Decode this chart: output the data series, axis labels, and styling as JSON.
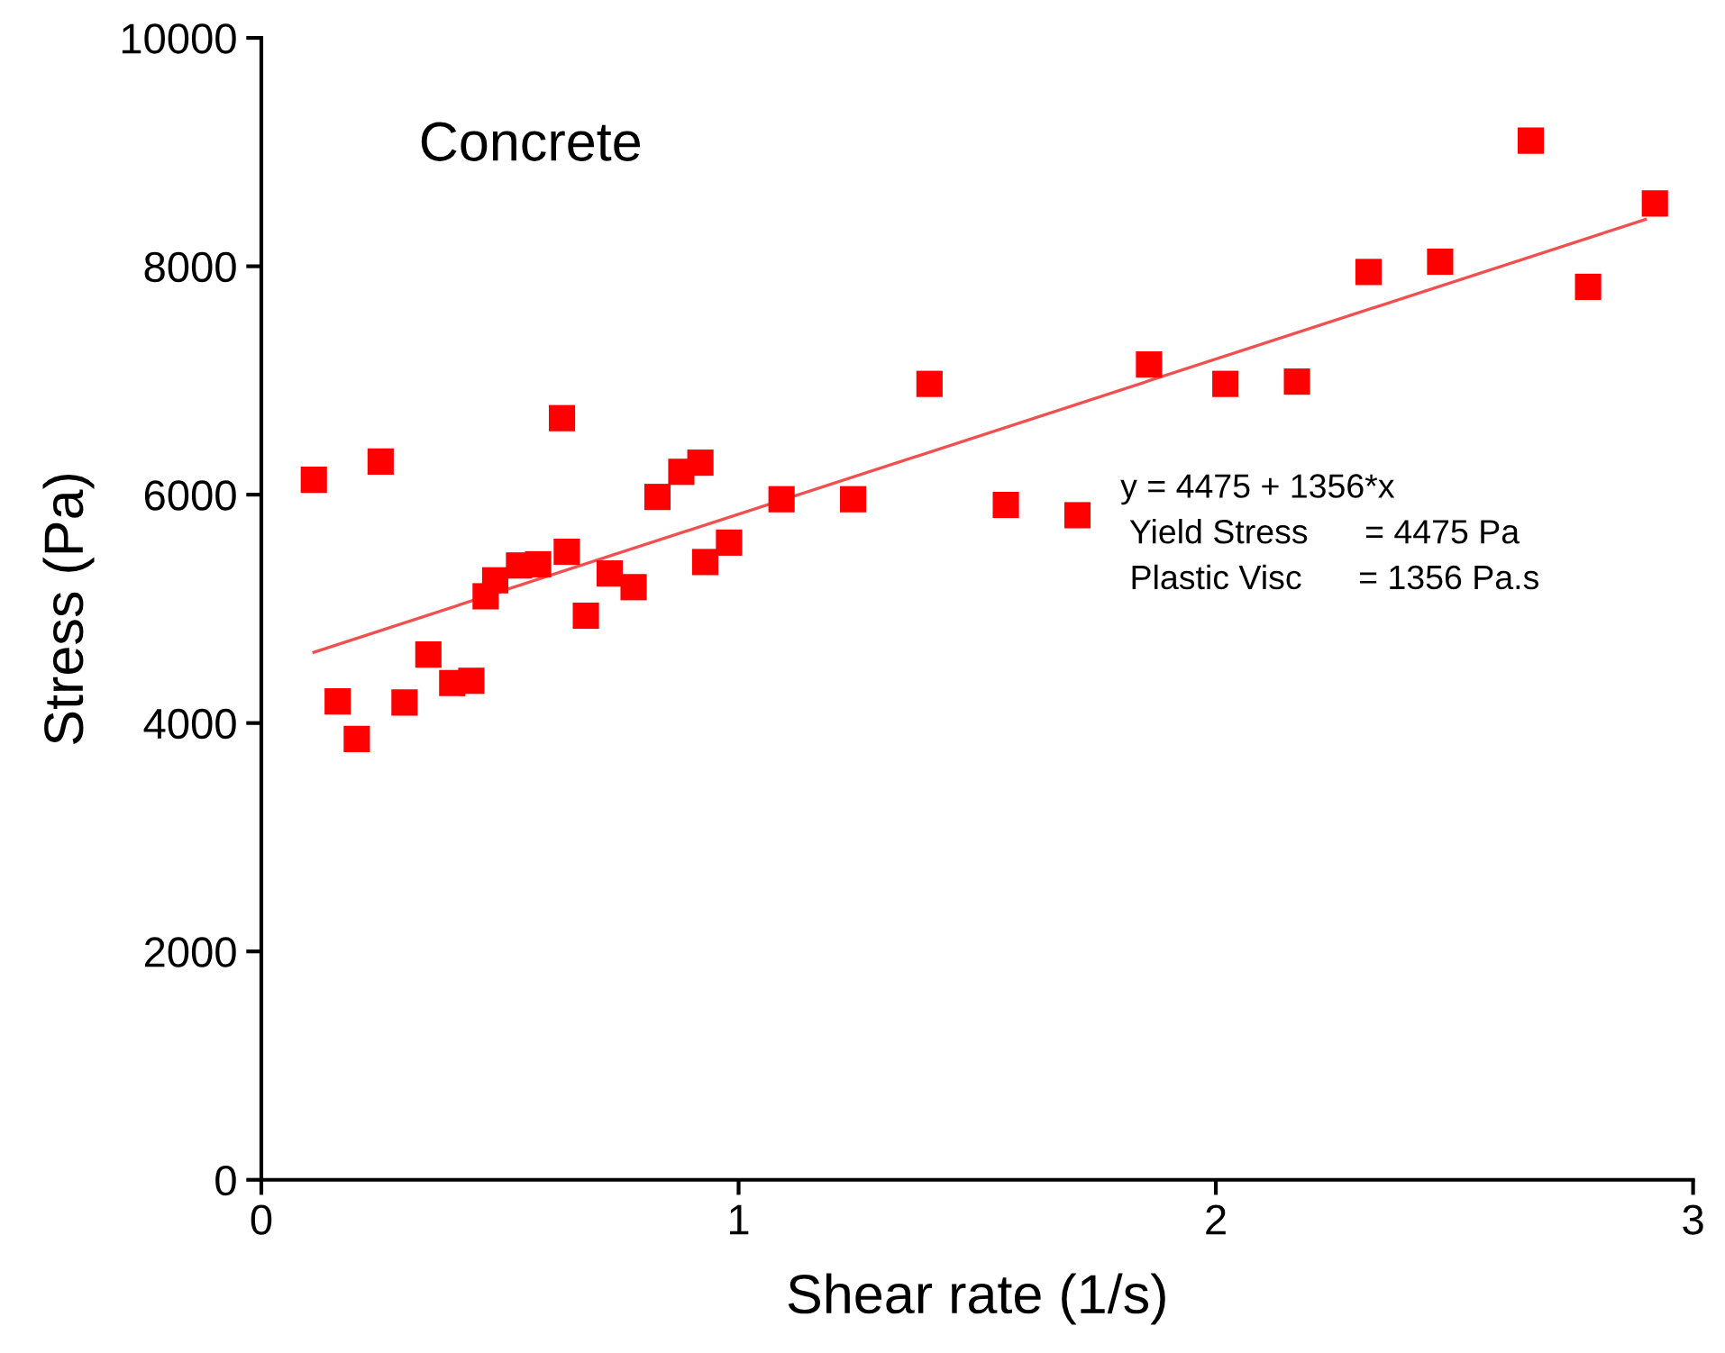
{
  "chart_data": {
    "type": "scatter",
    "xlabel": "Shear rate (1/s)",
    "ylabel": "Stress (Pa)",
    "xlim": [
      0,
      3
    ],
    "xticks": [
      0,
      1,
      2,
      3
    ],
    "ylim": [
      0,
      10000
    ],
    "yticks": [
      0,
      2000,
      4000,
      6000,
      8000,
      10000
    ],
    "grid": false,
    "legend": false,
    "series": [
      {
        "color": "#ff0000",
        "marker": "square",
        "x": [
          0.11,
          0.16,
          0.2,
          0.25,
          0.3,
          0.35,
          0.4,
          0.44,
          0.47,
          0.49,
          0.54,
          0.58,
          0.63,
          0.64,
          0.68,
          0.73,
          0.78,
          0.83,
          0.88,
          0.92,
          0.93,
          0.98,
          1.09,
          1.24,
          1.4,
          1.56,
          1.71,
          1.86,
          2.02,
          2.17,
          2.32,
          2.47,
          2.66,
          2.78,
          2.92
        ],
        "values": [
          6130,
          4190,
          3860,
          6290,
          4180,
          4600,
          4350,
          4370,
          5110,
          5250,
          5380,
          5390,
          6670,
          5500,
          4940,
          5310,
          5190,
          5980,
          6200,
          6280,
          5410,
          5580,
          5960,
          5960,
          6970,
          5910,
          5820,
          7140,
          6970,
          6990,
          7950,
          8040,
          9100,
          7820,
          8550
        ]
      },
      {
        "type": "line",
        "color": "#f05050",
        "x": [
          0.11,
          2.9
        ],
        "values": [
          4620,
          8410
        ]
      }
    ],
    "annotations": [
      "Concrete",
      "y = 4475 + 1356*x",
      " Yield Stress      = 4475 Pa",
      " Plastic Visc      = 1356 Pa.s"
    ]
  }
}
